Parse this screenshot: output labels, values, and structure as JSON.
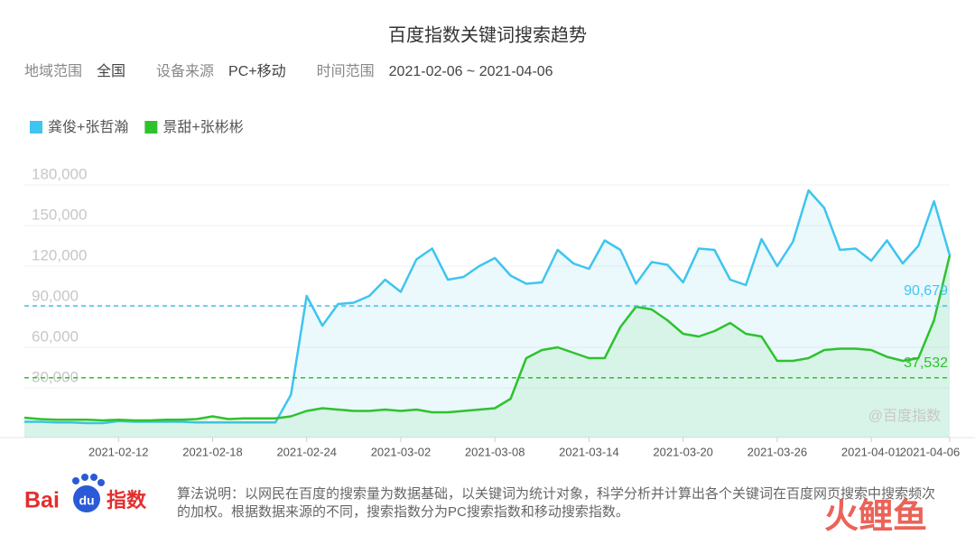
{
  "chart_data": {
    "type": "line",
    "title": "百度指数关键词搜索趋势",
    "filters": [
      {
        "label": "地域范围",
        "value": "全国"
      },
      {
        "label": "设备来源",
        "value": "PC+移动"
      },
      {
        "label": "时间范围",
        "value": "2021-02-06 ~ 2021-04-06"
      }
    ],
    "x": [
      "2021-02-06",
      "2021-02-07",
      "2021-02-08",
      "2021-02-09",
      "2021-02-10",
      "2021-02-11",
      "2021-02-12",
      "2021-02-13",
      "2021-02-14",
      "2021-02-15",
      "2021-02-16",
      "2021-02-17",
      "2021-02-18",
      "2021-02-19",
      "2021-02-20",
      "2021-02-21",
      "2021-02-22",
      "2021-02-23",
      "2021-02-24",
      "2021-02-25",
      "2021-02-26",
      "2021-02-27",
      "2021-02-28",
      "2021-03-01",
      "2021-03-02",
      "2021-03-03",
      "2021-03-04",
      "2021-03-05",
      "2021-03-06",
      "2021-03-07",
      "2021-03-08",
      "2021-03-09",
      "2021-03-10",
      "2021-03-11",
      "2021-03-12",
      "2021-03-13",
      "2021-03-14",
      "2021-03-15",
      "2021-03-16",
      "2021-03-17",
      "2021-03-18",
      "2021-03-19",
      "2021-03-20",
      "2021-03-21",
      "2021-03-22",
      "2021-03-23",
      "2021-03-24",
      "2021-03-25",
      "2021-03-26",
      "2021-03-27",
      "2021-03-28",
      "2021-03-29",
      "2021-03-30",
      "2021-03-31",
      "2021-04-01",
      "2021-04-02",
      "2021-04-03",
      "2021-04-04",
      "2021-04-05",
      "2021-04-06"
    ],
    "xticks": [
      "2021-02-12",
      "2021-02-18",
      "2021-02-24",
      "2021-03-02",
      "2021-03-08",
      "2021-03-14",
      "2021-03-20",
      "2021-03-26",
      "2021-04-01",
      "2021-04-06"
    ],
    "series": [
      {
        "name": "龚俊+张哲瀚",
        "color": "#3ec5f0",
        "values": [
          5000,
          5000,
          4500,
          4500,
          4000,
          4000,
          5500,
          5000,
          5000,
          5000,
          5000,
          4500,
          4500,
          4500,
          4500,
          4500,
          4500,
          25000,
          98000,
          76000,
          92000,
          93000,
          98000,
          110000,
          101000,
          125000,
          133000,
          110000,
          112000,
          120000,
          126000,
          113000,
          107000,
          108000,
          132000,
          122000,
          118000,
          139000,
          132000,
          107000,
          123000,
          121000,
          108000,
          133000,
          132000,
          110000,
          106000,
          140000,
          120000,
          138000,
          176000,
          163000,
          132000,
          133000,
          124000,
          139000,
          122000,
          135000,
          168000,
          128000
        ]
      },
      {
        "name": "景甜+张彬彬",
        "color": "#2ec22e",
        "values": [
          8000,
          7000,
          6500,
          6500,
          6500,
          6000,
          6500,
          6000,
          6000,
          6500,
          6500,
          7000,
          9000,
          7000,
          7500,
          7500,
          7500,
          9000,
          13000,
          15000,
          14000,
          13000,
          13000,
          14000,
          13000,
          14000,
          12000,
          12000,
          13000,
          14000,
          15000,
          22000,
          52000,
          58000,
          60000,
          56000,
          52000,
          52000,
          75000,
          90000,
          88000,
          80000,
          70000,
          68000,
          72000,
          78000,
          70000,
          68000,
          50000,
          50000,
          52000,
          58000,
          59000,
          59000,
          58000,
          53000,
          50000,
          52000,
          80000,
          128000
        ]
      }
    ],
    "reference_lines": [
      {
        "value": 90679,
        "value_label": "90,679",
        "color": "#3ec5f0"
      },
      {
        "value": 37532,
        "value_label": "37,532",
        "color": "#2ec22e"
      }
    ],
    "ylim": [
      0,
      190000
    ],
    "yticks": [
      {
        "value": 30000,
        "label": "30,000"
      },
      {
        "value": 60000,
        "label": "60,000"
      },
      {
        "value": 90000,
        "label": "90,000"
      },
      {
        "value": 120000,
        "label": "120,000"
      },
      {
        "value": 150000,
        "label": "150,000"
      },
      {
        "value": 180000,
        "label": "180,000"
      }
    ],
    "grid": true,
    "watermark": "@百度指数",
    "logo": {
      "text": "Bai",
      "badge": "du",
      "suffix": "指数"
    },
    "note": "算法说明：以网民在百度的搜索量为数据基础，以关键词为统计对象，科学分析并计算出各个关键词在百度网页搜索中搜索频次的加权。根据数据来源的不同，搜索指数分为PC搜索指数和移动搜索指数。",
    "brand": "火鲤鱼"
  }
}
